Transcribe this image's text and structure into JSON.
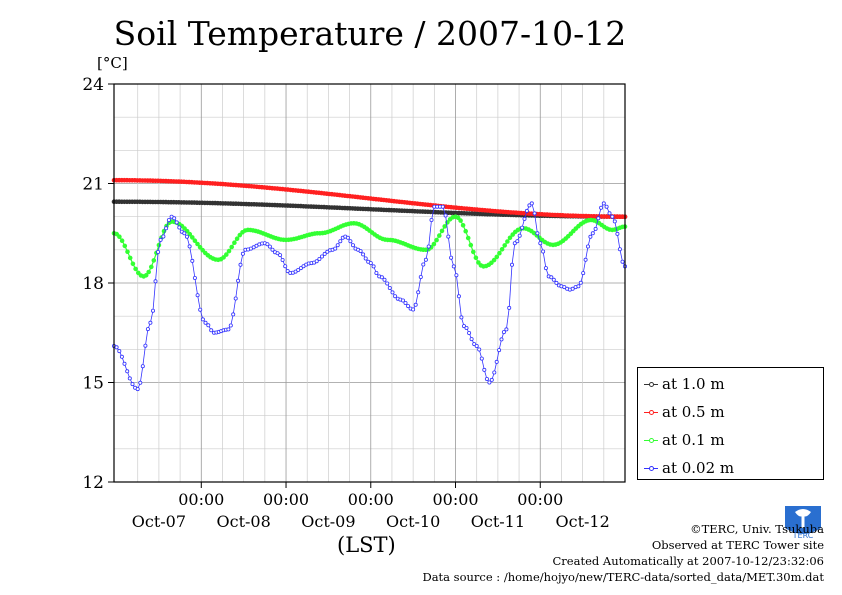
{
  "title": "Soil Temperature / 2007-10-12",
  "chart_data": {
    "type": "line",
    "title": "Soil Temperature / 2007-10-12",
    "ylabel": "[°C]",
    "xlabel": "(LST)",
    "ylim": [
      12,
      24
    ],
    "yticks": [
      12,
      15,
      18,
      21,
      24
    ],
    "xlim": [
      -1.03,
      5.0
    ],
    "xtick_positions": [
      0,
      1,
      2,
      3,
      4
    ],
    "time_labels": [
      "00:00",
      "00:00",
      "00:00",
      "00:00",
      "00:00"
    ],
    "date_labels": [
      "Oct-07",
      "Oct-08",
      "Oct-09",
      "Oct-10",
      "Oct-11",
      "Oct-12"
    ],
    "grid": true,
    "legend": "right",
    "series": [
      {
        "name": "at 1.0 m",
        "color": "#333333",
        "x": [
          -1.03,
          5.0
        ],
        "y": [
          20.45,
          20.0
        ]
      },
      {
        "name": "at 0.5 m",
        "color": "#ff2020",
        "x": [
          -1.03,
          5.0
        ],
        "y": [
          21.1,
          20.0
        ]
      },
      {
        "name": "at 0.1 m",
        "color": "#33ff33",
        "x": [
          -1.03,
          -0.68,
          -0.35,
          0.2,
          0.55,
          1.0,
          1.4,
          1.8,
          2.2,
          2.65,
          3.0,
          3.33,
          3.8,
          4.15,
          4.6,
          4.85,
          5.0
        ],
        "y": [
          19.5,
          18.2,
          19.85,
          18.7,
          19.6,
          19.3,
          19.5,
          19.8,
          19.3,
          19.0,
          20.0,
          18.5,
          19.65,
          19.15,
          19.9,
          19.6,
          19.7
        ]
      },
      {
        "name": "at 0.02 m",
        "color": "#3333ff",
        "x": [
          -1.03,
          -0.75,
          -0.6,
          -0.48,
          -0.35,
          -0.2,
          0.05,
          0.15,
          0.32,
          0.52,
          0.75,
          0.9,
          1.05,
          1.3,
          1.55,
          1.7,
          1.85,
          2.0,
          2.1,
          2.35,
          2.5,
          2.65,
          2.75,
          2.85,
          2.98,
          3.1,
          3.25,
          3.4,
          3.6,
          3.7,
          3.9,
          4.0,
          4.1,
          4.25,
          4.35,
          4.45,
          4.62,
          4.75,
          4.85,
          5.0
        ],
        "y": [
          16.1,
          14.8,
          16.8,
          19.3,
          20.0,
          19.5,
          16.8,
          16.5,
          16.6,
          19.0,
          19.2,
          18.9,
          18.3,
          18.6,
          19.0,
          19.4,
          19.0,
          18.6,
          18.2,
          17.5,
          17.2,
          18.7,
          20.3,
          20.3,
          18.5,
          16.7,
          16.1,
          15.0,
          16.6,
          19.2,
          20.4,
          19.2,
          18.2,
          17.9,
          17.8,
          17.9,
          19.5,
          20.4,
          20.0,
          18.5
        ]
      }
    ]
  },
  "credits": {
    "line1": "©TERC, Univ. Tsukuba",
    "line2": "Observed at TERC Tower site",
    "line3": "Created Automatically at 2007-10-12/23:32:06",
    "line4": "Data source : /home/hojyo/new/TERC-data/sorted_data/MET.30m.dat"
  },
  "logo_text": "TERC"
}
